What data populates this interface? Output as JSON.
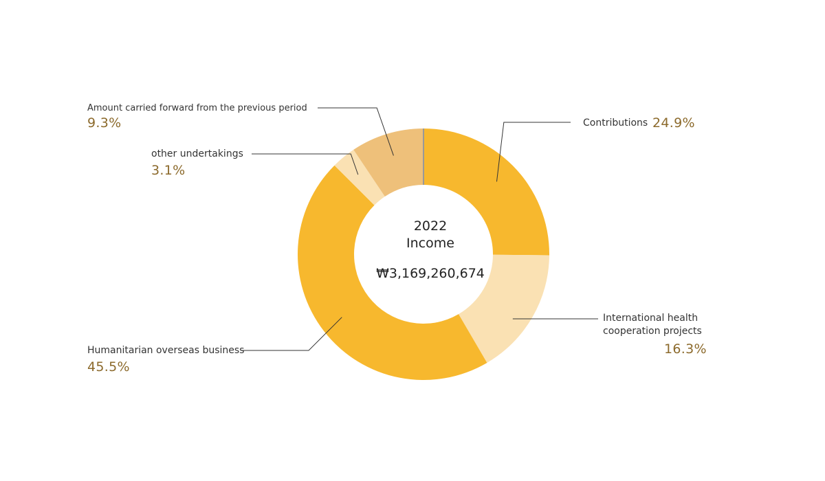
{
  "chart_data": {
    "type": "pie",
    "center": {
      "year": "2022",
      "caption": "Income",
      "total": "₩3,169,260,674"
    },
    "slices": [
      {
        "label": "Contributions",
        "value": 24.9,
        "value_text": "24.9%",
        "color": "#f7b82e"
      },
      {
        "label": "International health\ncooperation projects",
        "value": 16.3,
        "value_text": "16.3%",
        "color": "#fae1b3"
      },
      {
        "label": "Humanitarian overseas business",
        "value": 45.5,
        "value_text": "45.5%",
        "color": "#f7b82e"
      },
      {
        "label": "other undertakings",
        "value": 3.1,
        "value_text": "3.1%",
        "color": "#fae1b3"
      },
      {
        "label": "Amount carried forward from the previous period",
        "value": 9.3,
        "value_text": "9.3%",
        "color": "#eec07a"
      }
    ]
  },
  "colors": {
    "leader_line": "#333333",
    "percent_text": "#8c6a2c",
    "start_divider": "#999999"
  }
}
